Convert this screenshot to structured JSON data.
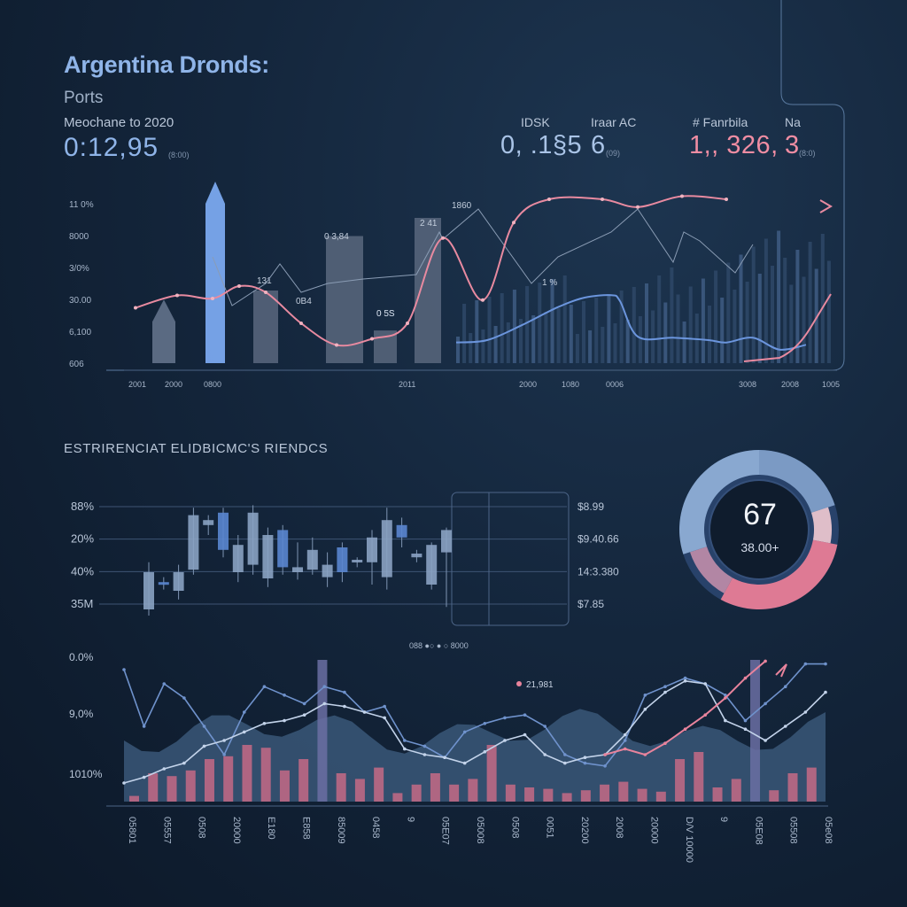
{
  "header": {
    "title": "Argentina Dronds:",
    "subtitle": "Ports",
    "period_label": "Meochane to 2020",
    "main_value": "0:12,95",
    "main_value_small": "(8:00)"
  },
  "kpis": [
    {
      "label": "IDSK",
      "value": "0, .1§5",
      "small": "",
      "color": "#a9c3e6"
    },
    {
      "label": "Iraar AC",
      "value": "6",
      "small": "(09)",
      "color": "#a9c3e6"
    },
    {
      "label": "# Fanrbila",
      "value": "1,, 326,",
      "small": "",
      "color": "#f08da3"
    },
    {
      "label": "Na",
      "value": "3",
      "small": "(8:0)",
      "color": "#f08da3"
    }
  ],
  "section_title": "ESTRIRENCIAT ELIDBICMC'S RIENDCS",
  "colors": {
    "blue": "#7aa4e8",
    "pink": "#e88aa0",
    "bar_dark": "#4a5a70",
    "grid": "#3a5070"
  },
  "chart_data": [
    {
      "type": "bar",
      "y_ticks": [
        "11 0%",
        "8000",
        "3/0%",
        "30.00",
        "6,100",
        "606"
      ],
      "side_label": "",
      "x_ticks": [
        "2001",
        "2000",
        "0800",
        "2011",
        "2000",
        "1080",
        "0006",
        "3008",
        "2008",
        "1005"
      ],
      "annotations": [
        "2 41",
        "1860",
        "0 5S",
        "0 3,84",
        "131",
        "0B4",
        "0 5S",
        "1 %"
      ],
      "bars": [
        {
          "value": 35,
          "highlight": false
        },
        {
          "value": 100,
          "highlight": true
        },
        {
          "value": 40,
          "highlight": false
        },
        {
          "value": 70,
          "highlight": false
        },
        {
          "value": 18,
          "highlight": false
        },
        {
          "value": 80,
          "highlight": false
        }
      ],
      "pink_series": [
        30,
        38,
        36,
        44,
        40,
        20,
        6,
        10,
        20,
        75,
        35,
        85,
        100,
        100,
        95,
        102,
        100
      ],
      "blue_series": [
        10,
        12,
        25,
        40,
        48,
        50,
        45,
        15,
        14,
        12,
        10,
        14,
        4,
        8
      ],
      "series": [
        {
          "name": "",
          "color": "#e88aa0"
        },
        {
          "name": "",
          "color": "#7aa4e8"
        }
      ]
    },
    {
      "type": "candlestick",
      "y_ticks": [
        "88%",
        "20%",
        "40%",
        "35M"
      ],
      "right_labels": [
        "$8.99",
        "$9.40.66",
        "14:3.380",
        "$7.85"
      ],
      "legend_text": "088 ●○ ● ○ 8000",
      "candles": [
        {
          "open": 40,
          "close": 10,
          "high": 48,
          "low": 5
        },
        {
          "open": 32,
          "close": 30,
          "high": 36,
          "low": 26
        },
        {
          "open": 25,
          "close": 40,
          "high": 46,
          "low": 18
        },
        {
          "open": 42,
          "close": 86,
          "high": 92,
          "low": 38
        },
        {
          "open": 82,
          "close": 78,
          "high": 86,
          "low": 70
        },
        {
          "open": 88,
          "close": 58,
          "high": 92,
          "low": 52
        },
        {
          "open": 62,
          "close": 40,
          "high": 70,
          "low": 32
        },
        {
          "open": 88,
          "close": 46,
          "high": 94,
          "low": 38
        },
        {
          "open": 70,
          "close": 35,
          "high": 76,
          "low": 28
        },
        {
          "open": 74,
          "close": 44,
          "high": 78,
          "low": 38
        },
        {
          "open": 40,
          "close": 44,
          "high": 64,
          "low": 34
        },
        {
          "open": 58,
          "close": 42,
          "high": 68,
          "low": 38
        },
        {
          "open": 46,
          "close": 36,
          "high": 56,
          "low": 28
        },
        {
          "open": 40,
          "close": 60,
          "high": 64,
          "low": 32
        },
        {
          "open": 48,
          "close": 50,
          "high": 52,
          "low": 44
        },
        {
          "open": 68,
          "close": 48,
          "high": 74,
          "low": 30
        },
        {
          "open": 36,
          "close": 82,
          "high": 92,
          "low": 26
        },
        {
          "open": 78,
          "close": 68,
          "high": 84,
          "low": 60
        },
        {
          "open": 52,
          "close": 55,
          "high": 58,
          "low": 48
        },
        {
          "open": 62,
          "close": 30,
          "high": 64,
          "low": 26
        },
        {
          "open": 56,
          "close": 74,
          "high": 76,
          "low": 12
        }
      ]
    },
    {
      "type": "pie",
      "value_label": "67",
      "sub_label": "38.00+",
      "slices": [
        {
          "value": 20,
          "color": "#7f9fc9"
        },
        {
          "value": 8,
          "color": "#e9c5cf"
        },
        {
          "value": 30,
          "color": "#e87d97"
        },
        {
          "value": 12,
          "color": "#b98aa8"
        },
        {
          "value": 30,
          "color": "#8eaed6"
        }
      ]
    },
    {
      "type": "bar",
      "y_ticks": [
        "0.0%",
        "9,0%",
        "1010%"
      ],
      "callout": "21,981",
      "x_ticks": [
        "05801",
        "05557",
        "0508",
        "20000",
        "E180",
        "E858",
        "85009",
        "0458",
        "9",
        "05E07",
        "05008",
        "0508",
        "0051",
        "20200",
        "2008",
        "20000",
        "D/V 10000",
        "9",
        "05E08",
        "05508",
        "05e08"
      ],
      "bars": [
        4,
        20,
        18,
        22,
        30,
        32,
        40,
        38,
        22,
        30,
        100,
        20,
        16,
        24,
        6,
        12,
        20,
        12,
        16,
        40,
        12,
        10,
        9,
        6,
        8,
        12,
        14,
        9,
        7,
        30,
        35,
        10,
        16,
        100,
        8,
        20,
        24
      ],
      "bar_colors_pink": true,
      "series": [
        {
          "name": "",
          "values": [
            90,
            50,
            80,
            70,
            50,
            30,
            60,
            78,
            72,
            66,
            78,
            74,
            60,
            64,
            40,
            36,
            28,
            46,
            52,
            56,
            58,
            50,
            30,
            24,
            22,
            40,
            72,
            78,
            84,
            80,
            72,
            54,
            66,
            78,
            94,
            94
          ],
          "color": "#6f92cc"
        },
        {
          "name": "",
          "values": [
            10,
            14,
            20,
            24,
            36,
            40,
            46,
            52,
            54,
            58,
            66,
            64,
            60,
            56,
            34,
            30,
            28,
            24,
            32,
            40,
            44,
            30,
            24,
            28,
            30,
            44,
            62,
            74,
            82,
            80,
            54,
            48,
            40,
            50,
            60,
            74
          ],
          "color": "#c3d3ea"
        },
        {
          "name": "",
          "values": [
            null,
            null,
            null,
            null,
            null,
            null,
            null,
            null,
            null,
            null,
            null,
            null,
            null,
            null,
            null,
            null,
            null,
            null,
            null,
            null,
            null,
            null,
            null,
            null,
            30,
            34,
            30,
            38,
            48,
            58,
            70,
            84,
            96,
            null,
            null,
            null
          ],
          "color": "#e8839c"
        }
      ]
    }
  ]
}
